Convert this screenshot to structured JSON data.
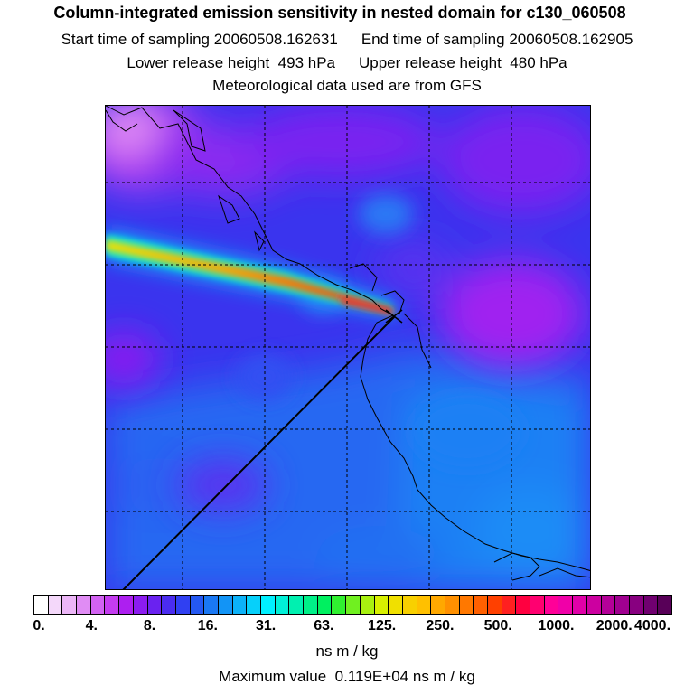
{
  "title": "Column-integrated emission sensitivity in nested domain for c130_060508",
  "sampling": {
    "start_label": "Start time of sampling",
    "start_value": "20060508.162631",
    "end_label": "End time of sampling",
    "end_value": "20060508.162905"
  },
  "release": {
    "lower_label": "Lower release height",
    "lower_value": "493 hPa",
    "upper_label": "Upper release height",
    "upper_value": "480 hPa"
  },
  "met_source": "Meteorological data used are from GFS",
  "colorbar": {
    "tick_labels": [
      "0.",
      "4.",
      "8.",
      "16.",
      "31.",
      "63.",
      "125.",
      "250.",
      "500.",
      "1000.",
      "2000.",
      "4000."
    ],
    "colors": [
      "#ffffff",
      "#f4d8fa",
      "#ecb6f7",
      "#e08cf4",
      "#d262f2",
      "#c43cf0",
      "#ad1ff0",
      "#8c1cf0",
      "#6a22f0",
      "#4a2cf0",
      "#3040f2",
      "#2458f2",
      "#1a78f4",
      "#1294f6",
      "#0cb2f8",
      "#06d0fa",
      "#00f0ff",
      "#00f0d8",
      "#00f0b0",
      "#00f088",
      "#00f060",
      "#30f030",
      "#70f020",
      "#a8f010",
      "#d8f000",
      "#f0e000",
      "#f8d000",
      "#ffc000",
      "#ffa800",
      "#ff9000",
      "#ff7800",
      "#ff6000",
      "#ff4000",
      "#ff2020",
      "#ff0040",
      "#ff0070",
      "#ff0098",
      "#f000a8",
      "#e000a8",
      "#cc00a0",
      "#b40098",
      "#a00090",
      "#880080",
      "#700070",
      "#580058"
    ],
    "units": "ns m / kg"
  },
  "maximum": {
    "label": "Maximum value",
    "value": "0.119E+04",
    "units": "ns m / kg"
  }
}
